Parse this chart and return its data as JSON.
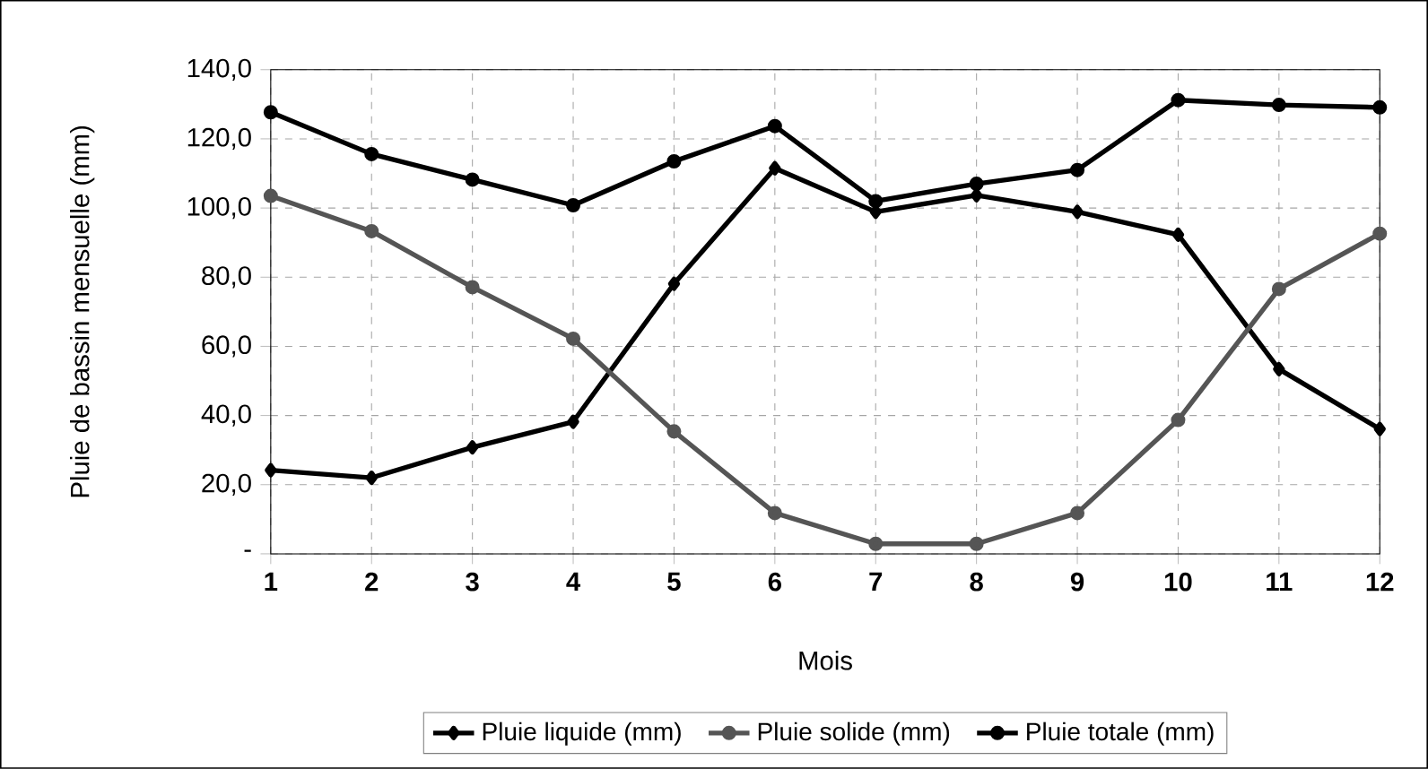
{
  "chart_data": {
    "type": "line",
    "xlabel": "Mois",
    "ylabel": "Pluie de bassin mensuelle (mm)",
    "categories": [
      "1",
      "2",
      "3",
      "4",
      "5",
      "6",
      "7",
      "8",
      "9",
      "10",
      "11",
      "12"
    ],
    "ylim": [
      0,
      140
    ],
    "yticks": [
      {
        "value": 0,
        "label": "-"
      },
      {
        "value": 20,
        "label": "20,0"
      },
      {
        "value": 40,
        "label": "40,0"
      },
      {
        "value": 60,
        "label": "60,0"
      },
      {
        "value": 80,
        "label": "80,0"
      },
      {
        "value": 100,
        "label": "100,0"
      },
      {
        "value": 120,
        "label": "120,0"
      },
      {
        "value": 140,
        "label": "140,0"
      }
    ],
    "grid": true,
    "legend": "bottom",
    "line_style": "solid",
    "series": [
      {
        "name": "Pluie liquide (mm)",
        "color": "#000000",
        "marker": "diamond",
        "values": [
          24.2,
          22.0,
          30.8,
          38.2,
          78.1,
          111.5,
          98.9,
          103.7,
          98.9,
          92.3,
          53.4,
          36.1
        ]
      },
      {
        "name": "Pluie solide (mm)",
        "color": "#555555",
        "marker": "circle",
        "values": [
          103.5,
          93.3,
          77.1,
          62.2,
          35.4,
          11.8,
          2.9,
          2.9,
          11.8,
          38.7,
          76.6,
          92.6
        ]
      },
      {
        "name": "Pluie totale (mm)",
        "color": "#000000",
        "marker": "circle",
        "values": [
          127.7,
          115.6,
          108.2,
          100.8,
          113.5,
          123.7,
          102.0,
          107.0,
          111.0,
          131.2,
          129.8,
          129.1
        ]
      }
    ]
  }
}
